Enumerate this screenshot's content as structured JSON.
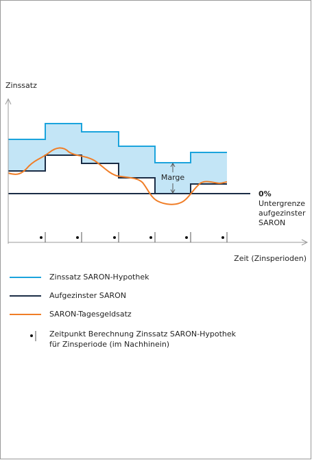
{
  "diagram": {
    "y_axis_label": "Zinssatz",
    "x_axis_label": "Zeit (Zinsperioden)",
    "margin_label": "Marge",
    "zero_label": "0%",
    "floor_label": [
      "Untergrenze",
      "aufgezinster",
      "SARON"
    ]
  },
  "legend": [
    {
      "label": "Zinssatz SARON-Hypothek"
    },
    {
      "label": "Aufgezinster SARON"
    },
    {
      "label": "SARON-Tagesgeldsatz"
    },
    {
      "label": [
        "Zeitpunkt Berechnung Zinssatz SARON-Hypothek",
        "für Zinsperiode (im Nachhinein)"
      ]
    }
  ]
}
